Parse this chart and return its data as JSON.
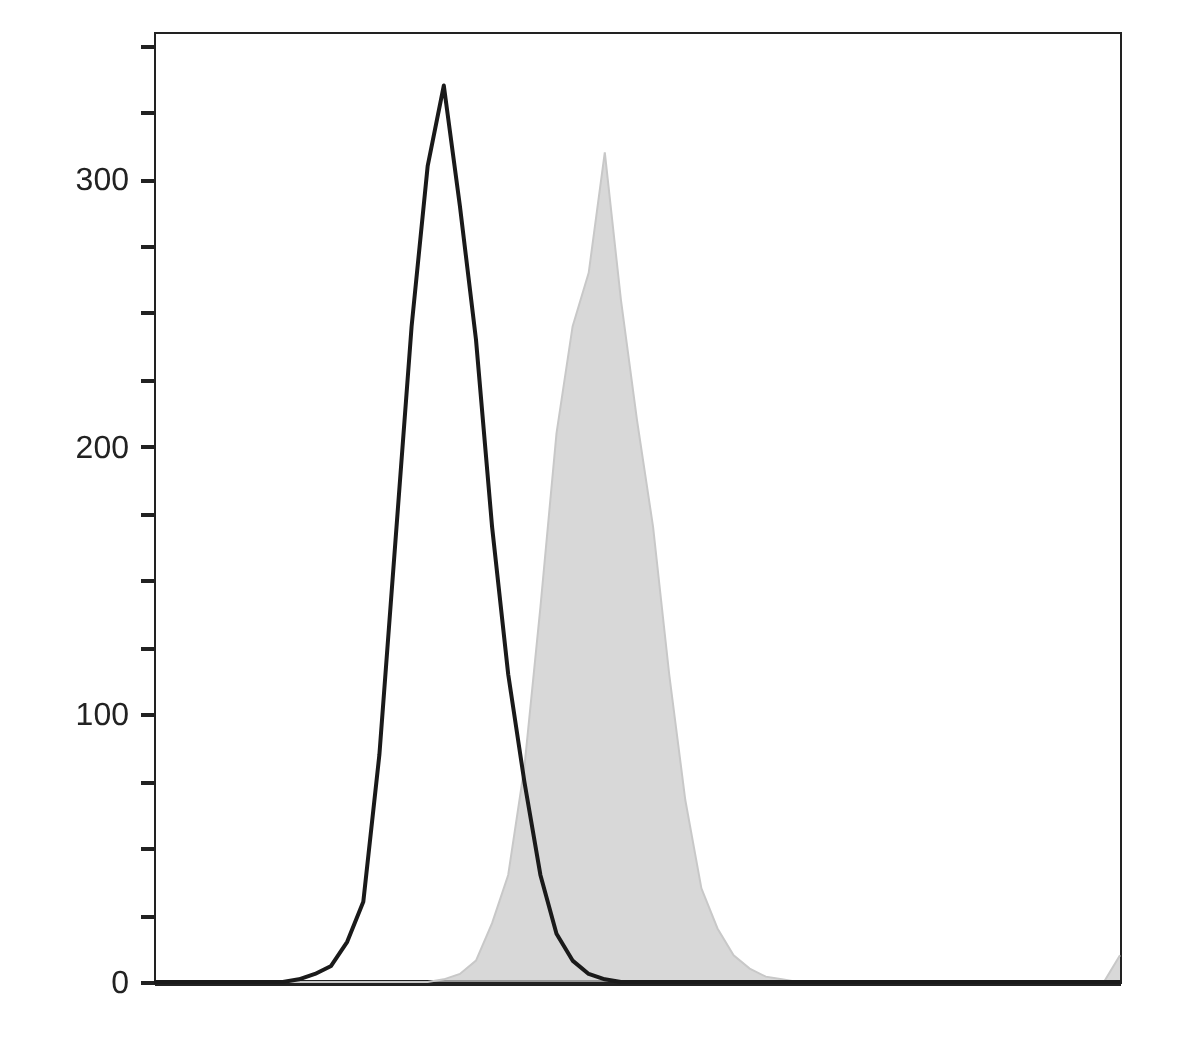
{
  "chart_data": {
    "type": "area",
    "categories": [
      null,
      null,
      null,
      null,
      null,
      null,
      null,
      null,
      null,
      null,
      null,
      null,
      null,
      null,
      null,
      null,
      null,
      null,
      null,
      null,
      null,
      null,
      null,
      null,
      null,
      null,
      null,
      null,
      null,
      null,
      null,
      null,
      null,
      null,
      null,
      null,
      null,
      null,
      null,
      null,
      null,
      null,
      null,
      null,
      null,
      null,
      null,
      null,
      null,
      null,
      null,
      null,
      null,
      null,
      null,
      null,
      null,
      null,
      null,
      null,
      null
    ],
    "series": [
      {
        "color": "#c8c8c8",
        "values": [
          0,
          0,
          0,
          0,
          0,
          0,
          0,
          0,
          0,
          0,
          0,
          0,
          0,
          0,
          0,
          0,
          0,
          0,
          1,
          3,
          8,
          22,
          40,
          80,
          140,
          205,
          245,
          265,
          310,
          255,
          210,
          170,
          115,
          68,
          35,
          20,
          10,
          5,
          2,
          1,
          0,
          0,
          0,
          0,
          0,
          0,
          0,
          0,
          0,
          0,
          0,
          0,
          0,
          0,
          0,
          0,
          0,
          0,
          0,
          0,
          10
        ]
      },
      {
        "type": "line",
        "color": "#1a1a1a",
        "values": [
          0,
          0,
          0,
          0,
          0,
          0,
          0,
          0,
          0,
          1,
          3,
          6,
          15,
          30,
          85,
          165,
          245,
          305,
          335,
          290,
          240,
          170,
          115,
          75,
          40,
          18,
          8,
          3,
          1,
          0,
          0,
          0,
          0,
          0,
          0,
          0,
          0,
          0,
          0,
          0,
          0,
          0,
          0,
          0,
          0,
          0,
          0,
          0,
          0,
          0,
          0,
          0,
          0,
          0,
          0,
          0,
          0,
          0,
          0,
          0,
          0
        ]
      }
    ],
    "ylim": [
      0,
      355
    ],
    "yticks": [
      0,
      {
        "value": 25,
        "label": null
      },
      {
        "value": 50,
        "label": null
      },
      {
        "value": 75,
        "label": null
      },
      100,
      {
        "value": 125,
        "label": null
      },
      {
        "value": 150,
        "label": null
      },
      {
        "value": 175,
        "label": null
      },
      200,
      {
        "value": 225,
        "label": null
      },
      {
        "value": 250,
        "label": null
      },
      {
        "value": 275,
        "label": null
      },
      300,
      {
        "value": 325,
        "label": null
      },
      {
        "value": 350,
        "label": null
      }
    ],
    "tick_labels": "y",
    "grid": false
  }
}
